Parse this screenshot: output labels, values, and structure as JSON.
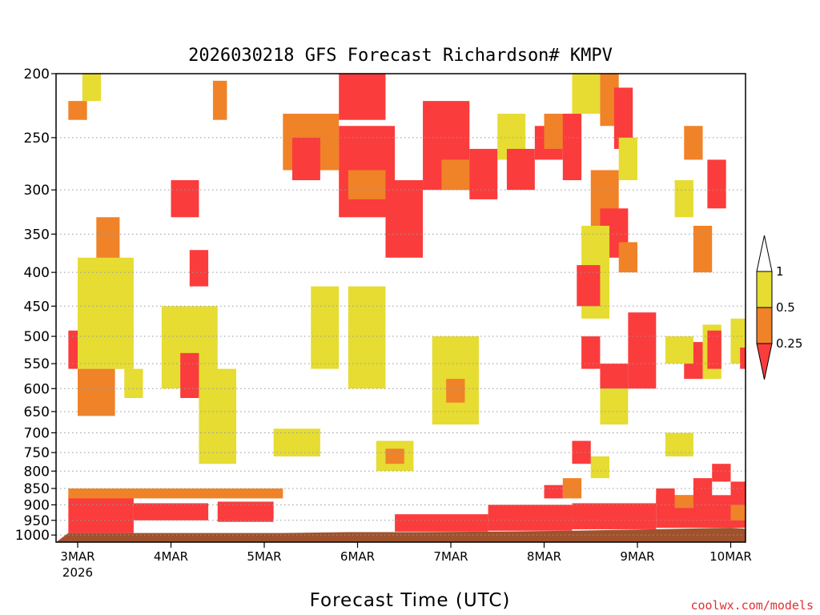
{
  "chart_data": {
    "type": "heatmap",
    "title": "2026030218 GFS Forecast Richardson# KMPV",
    "xlabel": "Forecast Time (UTC)",
    "ylabel": "",
    "y_scale": "pressure (log, decreasing upward)",
    "ylim": [
      1025,
      200
    ],
    "y_ticks": [
      200,
      250,
      300,
      350,
      400,
      450,
      500,
      550,
      600,
      650,
      700,
      750,
      800,
      850,
      900,
      950,
      1000
    ],
    "grid": "dotted horizontal at pressure ticks",
    "x_ticks": [
      {
        "label": "3MAR",
        "sublabel": "2026",
        "day": 0
      },
      {
        "label": "4MAR",
        "day": 1
      },
      {
        "label": "5MAR",
        "day": 2
      },
      {
        "label": "6MAR",
        "day": 3
      },
      {
        "label": "7MAR",
        "day": 4
      },
      {
        "label": "8MAR",
        "day": 5
      },
      {
        "label": "9MAR",
        "day": 6
      },
      {
        "label": "10MAR",
        "day": 7
      }
    ],
    "legend": {
      "placement": "right",
      "levels": [
        "1",
        "0.5",
        "0.25"
      ],
      "bins": [
        {
          "range": "> 1",
          "color": "#ffffff"
        },
        {
          "range": "0.5 - 1",
          "color": "#e6dc32"
        },
        {
          "range": "0.25 - 0.5",
          "color": "#f08228"
        },
        {
          "range": "< 0.25",
          "color": "#fa3c3c"
        }
      ]
    },
    "surface_color": "#a0522d",
    "surface_pressure": [
      {
        "day": -0.1,
        "p": 993
      },
      {
        "day": 2.2,
        "p": 993
      },
      {
        "day": 2.9,
        "p": 990
      },
      {
        "day": 3.6,
        "p": 990
      },
      {
        "day": 4.4,
        "p": 988
      },
      {
        "day": 5.3,
        "p": 985
      },
      {
        "day": 6.2,
        "p": 980
      },
      {
        "day": 7.0,
        "p": 975
      },
      {
        "day": 7.3,
        "p": 978
      }
    ],
    "cells": [
      {
        "d0": -0.1,
        "d1": 0.6,
        "p0": 870,
        "p1": 993,
        "c": "r"
      },
      {
        "d0": 0.6,
        "d1": 1.4,
        "p0": 895,
        "p1": 950,
        "c": "r"
      },
      {
        "d0": 1.5,
        "d1": 2.1,
        "p0": 890,
        "p1": 955,
        "c": "r"
      },
      {
        "d0": 3.4,
        "d1": 4.4,
        "p0": 930,
        "p1": 988,
        "c": "r"
      },
      {
        "d0": 4.4,
        "d1": 5.3,
        "p0": 900,
        "p1": 985,
        "c": "r"
      },
      {
        "d0": 5.3,
        "d1": 6.2,
        "p0": 895,
        "p1": 980,
        "c": "r"
      },
      {
        "d0": 6.2,
        "d1": 7.3,
        "p0": 870,
        "p1": 975,
        "c": "r"
      },
      {
        "d0": -0.1,
        "d1": 2.2,
        "p0": 850,
        "p1": 880,
        "c": "o"
      },
      {
        "d0": -0.1,
        "d1": 0.5,
        "p0": 490,
        "p1": 560,
        "c": "r"
      },
      {
        "d0": 0.0,
        "d1": 0.4,
        "p0": 560,
        "p1": 660,
        "c": "o"
      },
      {
        "d0": -0.1,
        "d1": 0.1,
        "p0": 220,
        "p1": 235,
        "c": "o"
      },
      {
        "d0": 0.05,
        "d1": 0.25,
        "p0": 200,
        "p1": 220,
        "c": "y"
      },
      {
        "d0": 0.2,
        "d1": 0.45,
        "p0": 330,
        "p1": 470,
        "c": "o"
      },
      {
        "d0": 0.0,
        "d1": 0.6,
        "p0": 380,
        "p1": 560,
        "c": "y"
      },
      {
        "d0": 0.5,
        "d1": 0.7,
        "p0": 560,
        "p1": 620,
        "c": "y"
      },
      {
        "d0": 1.0,
        "d1": 1.3,
        "p0": 290,
        "p1": 330,
        "c": "r"
      },
      {
        "d0": 1.2,
        "d1": 1.4,
        "p0": 370,
        "p1": 420,
        "c": "r"
      },
      {
        "d0": 0.9,
        "d1": 1.5,
        "p0": 450,
        "p1": 600,
        "c": "y"
      },
      {
        "d0": 1.1,
        "d1": 1.3,
        "p0": 530,
        "p1": 620,
        "c": "r"
      },
      {
        "d0": 1.45,
        "d1": 1.6,
        "p0": 205,
        "p1": 235,
        "c": "o"
      },
      {
        "d0": 1.3,
        "d1": 1.7,
        "p0": 560,
        "p1": 780,
        "c": "y"
      },
      {
        "d0": 2.1,
        "d1": 2.6,
        "p0": 690,
        "p1": 760,
        "c": "y"
      },
      {
        "d0": 2.2,
        "d1": 2.8,
        "p0": 230,
        "p1": 280,
        "c": "o"
      },
      {
        "d0": 2.3,
        "d1": 2.6,
        "p0": 250,
        "p1": 290,
        "c": "r"
      },
      {
        "d0": 2.5,
        "d1": 2.8,
        "p0": 420,
        "p1": 560,
        "c": "y"
      },
      {
        "d0": 2.8,
        "d1": 3.3,
        "p0": 200,
        "p1": 235,
        "c": "r"
      },
      {
        "d0": 2.8,
        "d1": 3.4,
        "p0": 240,
        "p1": 330,
        "c": "r"
      },
      {
        "d0": 2.9,
        "d1": 3.3,
        "p0": 280,
        "p1": 310,
        "c": "o"
      },
      {
        "d0": 3.3,
        "d1": 3.7,
        "p0": 290,
        "p1": 380,
        "c": "r"
      },
      {
        "d0": 3.2,
        "d1": 3.6,
        "p0": 720,
        "p1": 800,
        "c": "y"
      },
      {
        "d0": 3.3,
        "d1": 3.5,
        "p0": 740,
        "p1": 780,
        "c": "o"
      },
      {
        "d0": 2.9,
        "d1": 3.3,
        "p0": 420,
        "p1": 600,
        "c": "y"
      },
      {
        "d0": 3.7,
        "d1": 4.2,
        "p0": 220,
        "p1": 300,
        "c": "r"
      },
      {
        "d0": 3.9,
        "d1": 4.3,
        "p0": 270,
        "p1": 300,
        "c": "o"
      },
      {
        "d0": 3.8,
        "d1": 4.3,
        "p0": 500,
        "p1": 680,
        "c": "y"
      },
      {
        "d0": 3.95,
        "d1": 4.15,
        "p0": 580,
        "p1": 630,
        "c": "o"
      },
      {
        "d0": 4.2,
        "d1": 4.5,
        "p0": 260,
        "p1": 310,
        "c": "r"
      },
      {
        "d0": 4.5,
        "d1": 4.8,
        "p0": 230,
        "p1": 270,
        "c": "y"
      },
      {
        "d0": 4.6,
        "d1": 4.9,
        "p0": 260,
        "p1": 300,
        "c": "r"
      },
      {
        "d0": 4.9,
        "d1": 5.2,
        "p0": 240,
        "p1": 270,
        "c": "r"
      },
      {
        "d0": 5.0,
        "d1": 5.3,
        "p0": 230,
        "p1": 260,
        "c": "o"
      },
      {
        "d0": 5.2,
        "d1": 5.4,
        "p0": 230,
        "p1": 290,
        "c": "r"
      },
      {
        "d0": 5.3,
        "d1": 5.6,
        "p0": 200,
        "p1": 230,
        "c": "y"
      },
      {
        "d0": 5.5,
        "d1": 5.8,
        "p0": 280,
        "p1": 360,
        "c": "o"
      },
      {
        "d0": 5.6,
        "d1": 5.9,
        "p0": 320,
        "p1": 380,
        "c": "r"
      },
      {
        "d0": 5.6,
        "d1": 5.8,
        "p0": 200,
        "p1": 240,
        "c": "o"
      },
      {
        "d0": 5.75,
        "d1": 5.95,
        "p0": 210,
        "p1": 260,
        "c": "r"
      },
      {
        "d0": 5.8,
        "d1": 6.0,
        "p0": 250,
        "p1": 290,
        "c": "y"
      },
      {
        "d0": 5.4,
        "d1": 5.7,
        "p0": 340,
        "p1": 470,
        "c": "y"
      },
      {
        "d0": 5.35,
        "d1": 5.6,
        "p0": 390,
        "p1": 450,
        "c": "r"
      },
      {
        "d0": 5.4,
        "d1": 5.6,
        "p0": 500,
        "p1": 560,
        "c": "r"
      },
      {
        "d0": 5.6,
        "d1": 5.9,
        "p0": 550,
        "p1": 600,
        "c": "r"
      },
      {
        "d0": 5.9,
        "d1": 6.2,
        "p0": 460,
        "p1": 600,
        "c": "r"
      },
      {
        "d0": 5.8,
        "d1": 6.0,
        "p0": 360,
        "p1": 400,
        "c": "o"
      },
      {
        "d0": 5.6,
        "d1": 5.9,
        "p0": 600,
        "p1": 680,
        "c": "y"
      },
      {
        "d0": 6.5,
        "d1": 6.7,
        "p0": 510,
        "p1": 580,
        "c": "r"
      },
      {
        "d0": 6.3,
        "d1": 6.6,
        "p0": 500,
        "p1": 550,
        "c": "y"
      },
      {
        "d0": 6.7,
        "d1": 6.9,
        "p0": 480,
        "p1": 580,
        "c": "y"
      },
      {
        "d0": 6.75,
        "d1": 6.9,
        "p0": 490,
        "p1": 560,
        "c": "r"
      },
      {
        "d0": 6.6,
        "d1": 6.8,
        "p0": 340,
        "p1": 400,
        "c": "o"
      },
      {
        "d0": 6.75,
        "d1": 6.95,
        "p0": 270,
        "p1": 320,
        "c": "r"
      },
      {
        "d0": 6.5,
        "d1": 6.7,
        "p0": 240,
        "p1": 270,
        "c": "o"
      },
      {
        "d0": 6.8,
        "d1": 7.0,
        "p0": 780,
        "p1": 830,
        "c": "r"
      },
      {
        "d0": 6.6,
        "d1": 6.8,
        "p0": 820,
        "p1": 880,
        "c": "r"
      },
      {
        "d0": 7.0,
        "d1": 7.25,
        "p0": 830,
        "p1": 900,
        "c": "r"
      },
      {
        "d0": 7.0,
        "d1": 7.2,
        "p0": 900,
        "p1": 950,
        "c": "o"
      },
      {
        "d0": 7.0,
        "d1": 7.2,
        "p0": 470,
        "p1": 550,
        "c": "y"
      },
      {
        "d0": 7.1,
        "d1": 7.25,
        "p0": 520,
        "p1": 560,
        "c": "r"
      },
      {
        "d0": 6.3,
        "d1": 6.6,
        "p0": 700,
        "p1": 760,
        "c": "y"
      },
      {
        "d0": 6.4,
        "d1": 6.6,
        "p0": 290,
        "p1": 330,
        "c": "y"
      },
      {
        "d0": 5.5,
        "d1": 5.7,
        "p0": 760,
        "p1": 820,
        "c": "y"
      },
      {
        "d0": 5.3,
        "d1": 5.5,
        "p0": 720,
        "p1": 780,
        "c": "r"
      },
      {
        "d0": 5.2,
        "d1": 5.4,
        "p0": 820,
        "p1": 880,
        "c": "o"
      },
      {
        "d0": 5.0,
        "d1": 5.2,
        "p0": 840,
        "p1": 880,
        "c": "r"
      },
      {
        "d0": 6.2,
        "d1": 6.4,
        "p0": 850,
        "p1": 900,
        "c": "r"
      },
      {
        "d0": 6.4,
        "d1": 6.6,
        "p0": 870,
        "p1": 910,
        "c": "o"
      }
    ]
  },
  "credit": "coolwx.com/models"
}
